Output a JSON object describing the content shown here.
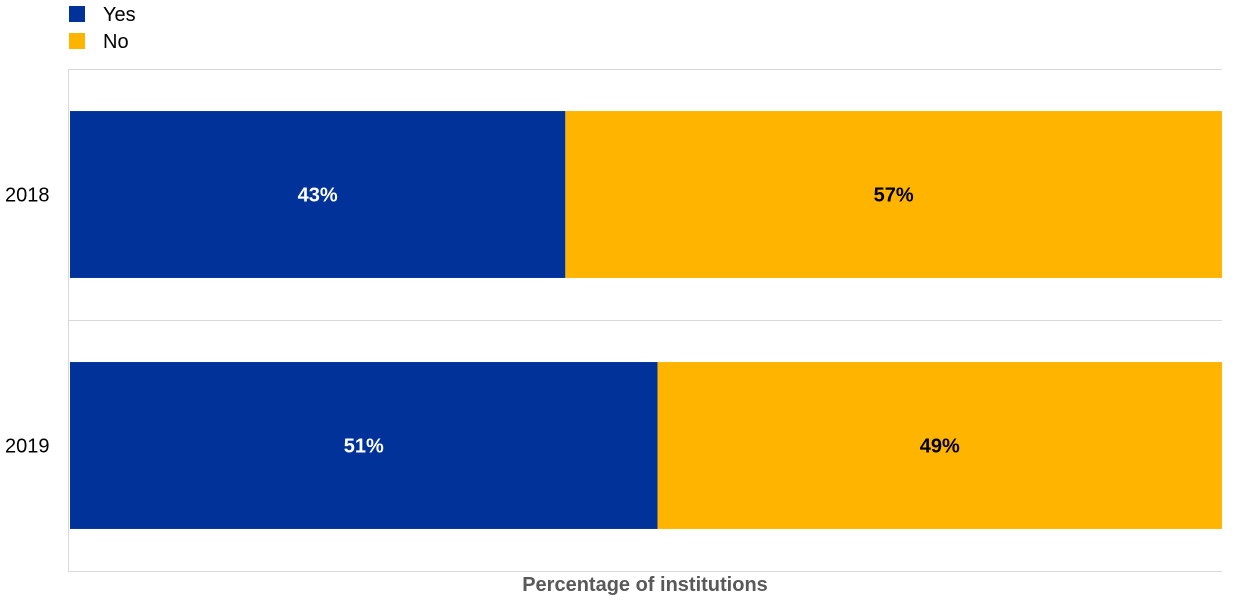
{
  "chart_data": {
    "type": "bar",
    "orientation": "horizontal",
    "stacked": true,
    "categories": [
      "2018",
      "2019"
    ],
    "series": [
      {
        "name": "Yes",
        "values": [
          43,
          51
        ],
        "labels": [
          "43%",
          "51%"
        ],
        "color": "#003299",
        "label_color": "#ffffff"
      },
      {
        "name": "No",
        "values": [
          57,
          49
        ],
        "labels": [
          "57%",
          "49%"
        ],
        "color": "#FFB400",
        "label_color": "#000000"
      }
    ],
    "title": "",
    "xlabel": "Percentage of institutions",
    "ylabel": "",
    "xlim": [
      0,
      100
    ],
    "grid": true,
    "legend_position": "top-left"
  }
}
